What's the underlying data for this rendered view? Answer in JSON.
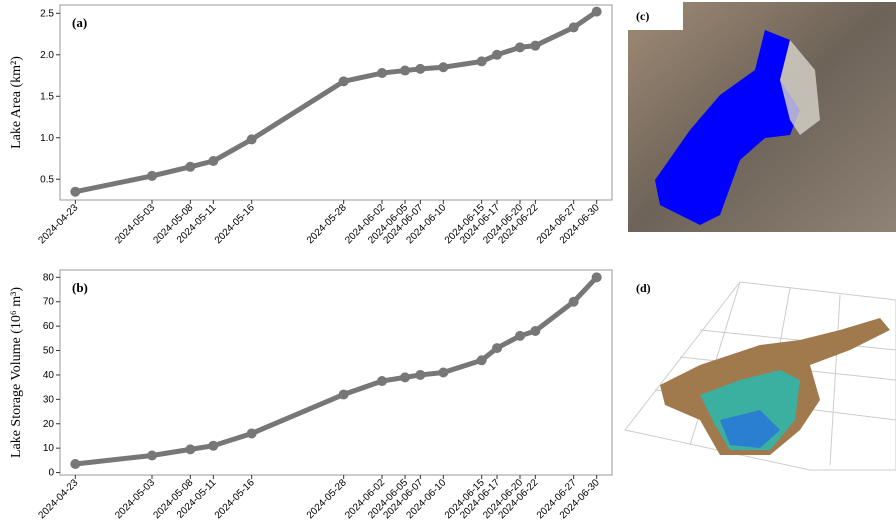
{
  "chart_data": [
    {
      "type": "line",
      "panel_label": "(a)",
      "y_label": "Lake Area (km²)",
      "x": [
        "2024-04-23",
        "2024-05-03",
        "2024-05-08",
        "2024-05-11",
        "2024-05-16",
        "2024-05-28",
        "2024-06-02",
        "2024-06-05",
        "2024-06-07",
        "2024-06-10",
        "2024-06-15",
        "2024-06-17",
        "2024-06-20",
        "2024-06-22",
        "2024-06-27",
        "2024-06-30"
      ],
      "xlim": [
        "2024-04-21",
        "2024-07-02"
      ],
      "series": [
        {
          "color": "#777777",
          "values": [
            0.35,
            0.54,
            0.65,
            0.72,
            0.98,
            1.68,
            1.78,
            1.81,
            1.83,
            1.85,
            1.92,
            2.0,
            2.09,
            2.11,
            2.33,
            2.52
          ]
        }
      ],
      "ylim": [
        0.25,
        2.6
      ],
      "yticks": [
        0.5,
        {
          "value": 1,
          "label": "1.0"
        },
        1.5,
        {
          "value": 2,
          "label": "2.0"
        },
        2.5
      ]
    },
    {
      "type": "line",
      "panel_label": "(b)",
      "y_label": "Lake Storage Volume (10⁶ m³)",
      "x": [
        "2024-04-23",
        "2024-05-03",
        "2024-05-08",
        "2024-05-11",
        "2024-05-16",
        "2024-05-28",
        "2024-06-02",
        "2024-06-05",
        "2024-06-07",
        "2024-06-10",
        "2024-06-15",
        "2024-06-17",
        "2024-06-20",
        "2024-06-22",
        "2024-06-27",
        "2024-06-30"
      ],
      "xlim": [
        "2024-04-21",
        "2024-07-02"
      ],
      "series": [
        {
          "color": "#777777",
          "values": [
            3.5,
            7,
            9.5,
            11,
            16,
            32,
            37.5,
            39,
            40,
            41,
            46,
            51,
            56,
            58,
            70,
            80
          ]
        }
      ],
      "ylim": [
        -1,
        83
      ],
      "yticks": [
        0,
        10,
        20,
        30,
        40,
        50,
        60,
        70,
        80
      ]
    }
  ],
  "images": [
    {
      "label": "(c)"
    },
    {
      "label": "(d)"
    }
  ]
}
